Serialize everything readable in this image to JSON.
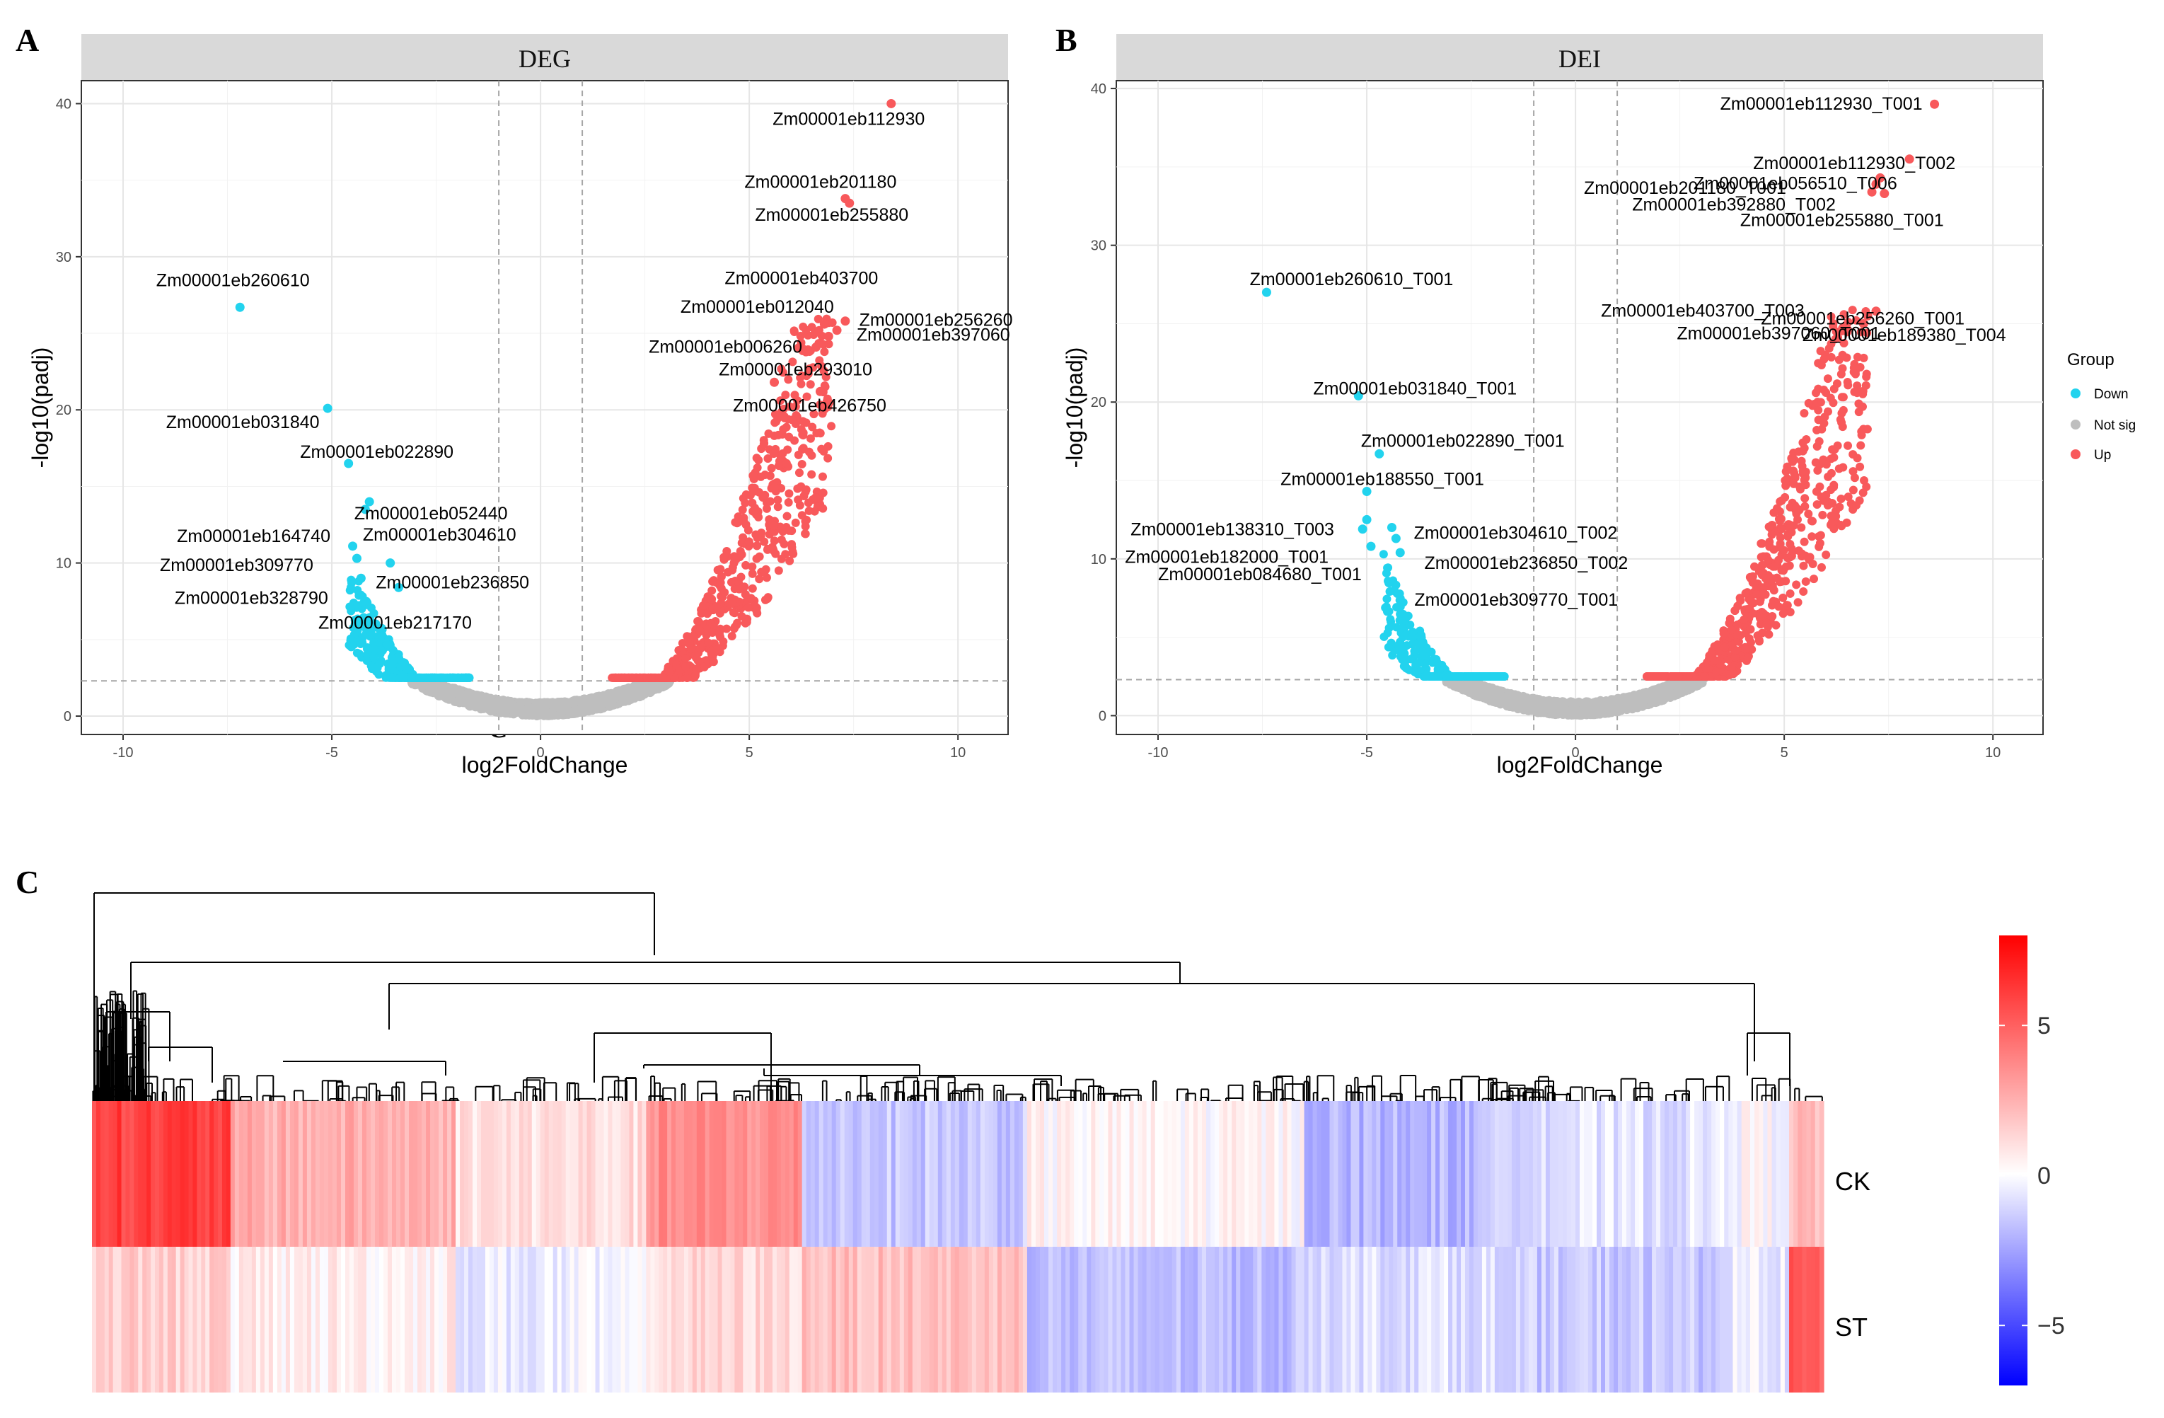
{
  "panel_labels": {
    "a": "A",
    "b": "B",
    "c": "C",
    "stray": "C"
  },
  "colors": {
    "down": "#22d3ee",
    "notsig": "#bebebe",
    "up": "#f8595b",
    "strip": "#d9d9d9",
    "grid": "#ebebeb"
  },
  "legend": {
    "title": "Group",
    "items": [
      {
        "label": "Down",
        "color": "#22d3ee"
      },
      {
        "label": "Not sig",
        "color": "#bebebe"
      },
      {
        "label": "Up",
        "color": "#f8595b"
      }
    ]
  },
  "chart_data": [
    {
      "type": "scatter",
      "title": "DEG",
      "xlabel": "log2FoldChange",
      "ylabel": "-log10(padj)",
      "xlim": [
        -11,
        11.2
      ],
      "ylim": [
        -1.2,
        41.5
      ],
      "xticks": [
        -10,
        -5,
        0,
        5,
        10
      ],
      "xtick_labels": [
        "-10",
        "-5",
        "0",
        "5",
        "10"
      ],
      "yticks": [
        0,
        10,
        20,
        30,
        40
      ],
      "ytick_labels": [
        "0",
        "10",
        "20",
        "30",
        "40"
      ],
      "fc_threshold": 1,
      "padj_threshold_line": 2.3,
      "labeled_points": [
        {
          "label": "Zm00001eb112930",
          "x": 8.4,
          "y": 40.0,
          "group": "Up"
        },
        {
          "label": "Zm00001eb201180",
          "x": 7.3,
          "y": 33.8,
          "group": "Up"
        },
        {
          "label": "Zm00001eb255880",
          "x": 7.4,
          "y": 33.5,
          "group": "Up"
        },
        {
          "label": "Zm00001eb403700",
          "x": 7.3,
          "y": 25.8,
          "group": "Up"
        },
        {
          "label": "Zm00001eb256260",
          "x": 7.1,
          "y": 25.2,
          "group": "Up"
        },
        {
          "label": "Zm00001eb012040",
          "x": 6.8,
          "y": 25.6,
          "group": "Up"
        },
        {
          "label": "Zm00001eb006260",
          "x": 6.6,
          "y": 24.1,
          "group": "Up"
        },
        {
          "label": "Zm00001eb397060",
          "x": 6.9,
          "y": 24.8,
          "group": "Up"
        },
        {
          "label": "Zm00001eb293010",
          "x": 5.6,
          "y": 21.8,
          "group": "Up"
        },
        {
          "label": "Zm00001eb426750",
          "x": 6.7,
          "y": 21.2,
          "group": "Up"
        },
        {
          "label": "Zm00001eb260610",
          "x": -7.2,
          "y": 26.7,
          "group": "Down"
        },
        {
          "label": "Zm00001eb031840",
          "x": -5.1,
          "y": 20.1,
          "group": "Down"
        },
        {
          "label": "Zm00001eb022890",
          "x": -4.6,
          "y": 16.5,
          "group": "Down"
        },
        {
          "label": "Zm00001eb052440",
          "x": -4.1,
          "y": 14.0,
          "group": "Down"
        },
        {
          "label": "Zm00001eb304610",
          "x": -4.2,
          "y": 13.5,
          "group": "Down"
        },
        {
          "label": "Zm00001eb164740",
          "x": -4.5,
          "y": 11.1,
          "group": "Down"
        },
        {
          "label": "Zm00001eb309770",
          "x": -4.4,
          "y": 10.3,
          "group": "Down"
        },
        {
          "label": "Zm00001eb328790",
          "x": -4.3,
          "y": 9.0,
          "group": "Down"
        },
        {
          "label": "Zm00001eb236850",
          "x": -3.6,
          "y": 10.0,
          "group": "Down"
        },
        {
          "label": "Zm00001eb217170",
          "x": -3.4,
          "y": 8.4,
          "group": "Down"
        }
      ]
    },
    {
      "type": "scatter",
      "title": "DEI",
      "xlabel": "log2FoldChange",
      "ylabel": "-log10(padj)",
      "xlim": [
        -11,
        11.2
      ],
      "ylim": [
        -1.2,
        40.5
      ],
      "xticks": [
        -10,
        -5,
        0,
        5,
        10
      ],
      "xtick_labels": [
        "-10",
        "-5",
        "0",
        "5",
        "10"
      ],
      "yticks": [
        0,
        10,
        20,
        30,
        40
      ],
      "ytick_labels": [
        "0",
        "10",
        "20",
        "30",
        "40"
      ],
      "fc_threshold": 1,
      "padj_threshold_line": 2.3,
      "labeled_points": [
        {
          "label": "Zm00001eb112930_T001",
          "x": 8.6,
          "y": 39.0,
          "group": "Up"
        },
        {
          "label": "Zm00001eb112930_T002",
          "x": 8.0,
          "y": 35.5,
          "group": "Up"
        },
        {
          "label": "Zm00001eb056510_T006",
          "x": 7.3,
          "y": 34.3,
          "group": "Up"
        },
        {
          "label": "Zm00001eb201180_T001",
          "x": 7.2,
          "y": 33.9,
          "group": "Up"
        },
        {
          "label": "Zm00001eb392880_T002",
          "x": 7.1,
          "y": 33.4,
          "group": "Up"
        },
        {
          "label": "Zm00001eb255880_T001",
          "x": 7.4,
          "y": 33.3,
          "group": "Up"
        },
        {
          "label": "Zm00001eb403700_T003",
          "x": 7.2,
          "y": 25.8,
          "group": "Up"
        },
        {
          "label": "Zm00001eb256260_T001",
          "x": 7.0,
          "y": 25.5,
          "group": "Up"
        },
        {
          "label": "Zm00001eb397060_T001",
          "x": 6.9,
          "y": 25.0,
          "group": "Up"
        },
        {
          "label": "Zm00001eb189380_T004",
          "x": 6.4,
          "y": 24.7,
          "group": "Up"
        },
        {
          "label": "Zm00001eb260610_T001",
          "x": -7.4,
          "y": 27.0,
          "group": "Down"
        },
        {
          "label": "Zm00001eb031840_T001",
          "x": -5.2,
          "y": 20.4,
          "group": "Down"
        },
        {
          "label": "Zm00001eb022890_T001",
          "x": -4.7,
          "y": 16.7,
          "group": "Down"
        },
        {
          "label": "Zm00001eb188550_T001",
          "x": -5.0,
          "y": 14.3,
          "group": "Down"
        },
        {
          "label": "Zm00001eb138310_T003",
          "x": -5.0,
          "y": 12.5,
          "group": "Down"
        },
        {
          "label": "Zm00001eb182000_T001",
          "x": -5.1,
          "y": 11.9,
          "group": "Down"
        },
        {
          "label": "Zm00001eb084680_T001",
          "x": -4.9,
          "y": 10.8,
          "group": "Down"
        },
        {
          "label": "Zm00001eb304610_T002",
          "x": -4.4,
          "y": 12.0,
          "group": "Down"
        },
        {
          "label": "Zm00001eb236850_T002",
          "x": -4.3,
          "y": 11.3,
          "group": "Down"
        },
        {
          "label": "Zm00001eb309770_T001",
          "x": -4.2,
          "y": 10.4,
          "group": "Down"
        }
      ]
    },
    {
      "type": "heatmap",
      "rows": [
        "CK",
        "ST"
      ],
      "colorbar": {
        "min": -7,
        "max": 8,
        "ticks": [
          5,
          0,
          -5
        ],
        "tick_labels": [
          "5",
          "0",
          "−5"
        ],
        "colors": [
          "#0000ff",
          "#ffffff",
          "#ff0000"
        ]
      },
      "column_segments": [
        {
          "fraction": 0.08,
          "CK": 6.0,
          "ST": 1.5
        },
        {
          "fraction": 0.13,
          "CK": 2.5,
          "ST": 0.5
        },
        {
          "fraction": 0.11,
          "CK": 1.0,
          "ST": -0.5
        },
        {
          "fraction": 0.09,
          "CK": 3.5,
          "ST": 1.2
        },
        {
          "fraction": 0.13,
          "CK": -1.5,
          "ST": 2.0
        },
        {
          "fraction": 0.16,
          "CK": 0.2,
          "ST": -1.8
        },
        {
          "fraction": 0.11,
          "CK": -2.0,
          "ST": -0.8
        },
        {
          "fraction": 0.13,
          "CK": -0.8,
          "ST": -1.5
        },
        {
          "fraction": 0.04,
          "CK": 0.0,
          "ST": -0.6
        },
        {
          "fraction": 0.02,
          "CK": 2.0,
          "ST": 5.0
        }
      ]
    }
  ]
}
